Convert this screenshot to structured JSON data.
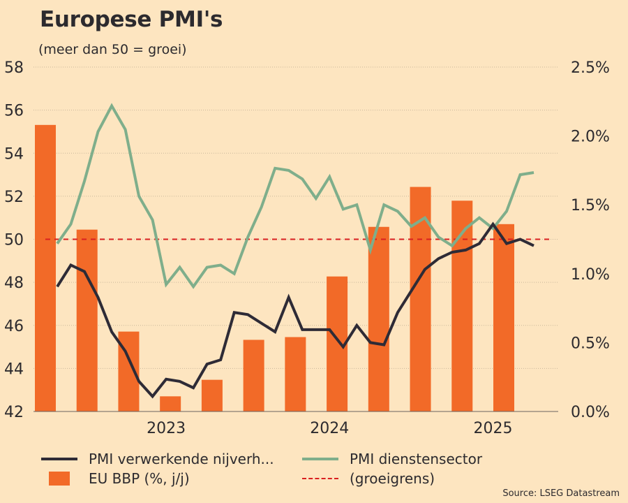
{
  "header": {
    "title": "Europese PMI's",
    "subtitle": "(meer dan 50 = groei)"
  },
  "legend": {
    "manufacturing": "PMI verwerkende nijverh...",
    "services": "PMI dienstensector",
    "gdp": "EU BBP (%, j/j)",
    "threshold": "(groeigrens)"
  },
  "source": "Source: LSEG Datastream",
  "colors": {
    "background": "#fde5c0",
    "manufacturing": "#2e2b36",
    "services": "#7fae8b",
    "gdp": "#f26a28",
    "threshold": "#d92020",
    "grid": "#c9b79a"
  },
  "chart_data": {
    "type": "bar+line",
    "title": "Europese PMI's",
    "subtitle": "(meer dan 50 = groei)",
    "left_axis": {
      "range": [
        42,
        58
      ],
      "ticks": [
        "42",
        "44",
        "46",
        "48",
        "50",
        "52",
        "54",
        "56",
        "58"
      ],
      "tick_values": [
        42,
        44,
        46,
        48,
        50,
        52,
        54,
        56,
        58
      ]
    },
    "right_axis": {
      "range": [
        0,
        2.5
      ],
      "ticks": [
        "0.0%",
        "0.5%",
        "1.0%",
        "1.5%",
        "2.0%",
        "2.5%"
      ],
      "tick_values": [
        0,
        0.5,
        1.0,
        1.5,
        2.0,
        2.5
      ]
    },
    "x_ticks": [
      {
        "label": "2023",
        "month_index": 8
      },
      {
        "label": "2024",
        "month_index": 20
      },
      {
        "label": "2025",
        "month_index": 32
      }
    ],
    "grid": true,
    "legend_position": "bottom",
    "threshold": {
      "name": "(groeigrens)",
      "value": 50,
      "axis": "left"
    },
    "series": [
      {
        "name": "PMI verwerkende nijverh...",
        "kind": "line",
        "axis": "left",
        "start_month_index": 0,
        "values": [
          47.8,
          48.8,
          48.5,
          47.3,
          45.7,
          44.8,
          43.4,
          42.7,
          43.5,
          43.4,
          43.1,
          44.2,
          44.4,
          46.6,
          46.5,
          46.1,
          45.7,
          47.3,
          45.8,
          45.8,
          45.8,
          45.0,
          46.0,
          45.2,
          45.1,
          46.6,
          47.6,
          48.6,
          49.1,
          49.4,
          49.5,
          49.8,
          50.7,
          49.8,
          50.0,
          49.7
        ]
      },
      {
        "name": "PMI dienstensector",
        "kind": "line",
        "axis": "left",
        "start_month_index": 0,
        "values": [
          49.8,
          50.7,
          52.7,
          55.0,
          56.2,
          55.1,
          52.0,
          50.9,
          47.9,
          48.7,
          47.8,
          48.7,
          48.8,
          48.4,
          50.1,
          51.5,
          53.3,
          53.2,
          52.8,
          51.9,
          52.9,
          51.4,
          51.6,
          49.5,
          51.6,
          51.3,
          50.6,
          51.0,
          50.1,
          49.7,
          50.5,
          51.0,
          50.5,
          51.3,
          53.0,
          53.1
        ]
      },
      {
        "name": "EU BBP (%, j/j)",
        "kind": "bar",
        "axis": "right",
        "quarterly": true,
        "values": [
          2.08,
          1.32,
          0.58,
          0.11,
          0.23,
          0.52,
          0.54,
          0.98,
          1.34,
          1.63,
          1.53,
          1.36
        ]
      }
    ]
  }
}
